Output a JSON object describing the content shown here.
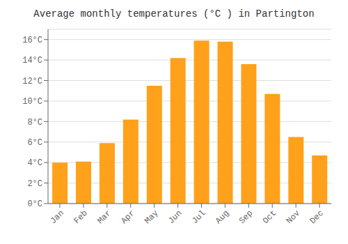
{
  "chart_data": {
    "type": "bar",
    "title": "Average monthly temperatures (°C ) in Partington",
    "categories": [
      "Jan",
      "Feb",
      "Mar",
      "Apr",
      "May",
      "Jun",
      "Jul",
      "Aug",
      "Sep",
      "Oct",
      "Nov",
      "Dec"
    ],
    "values": [
      4.0,
      4.1,
      5.9,
      8.2,
      11.5,
      14.2,
      15.9,
      15.8,
      13.6,
      10.7,
      6.5,
      4.7
    ],
    "color": "#FFA11A",
    "ylim": [
      0,
      17
    ],
    "yticks": [
      {
        "value": 0,
        "label": "0°C"
      },
      {
        "value": 2,
        "label": "2°C"
      },
      {
        "value": 4,
        "label": "4°C"
      },
      {
        "value": 6,
        "label": "6°C"
      },
      {
        "value": 8,
        "label": "8°C"
      },
      {
        "value": 10,
        "label": "10°C"
      },
      {
        "value": 12,
        "label": "12°C"
      },
      {
        "value": 14,
        "label": "14°C"
      },
      {
        "value": 16,
        "label": "16°C"
      }
    ],
    "grid": true
  }
}
